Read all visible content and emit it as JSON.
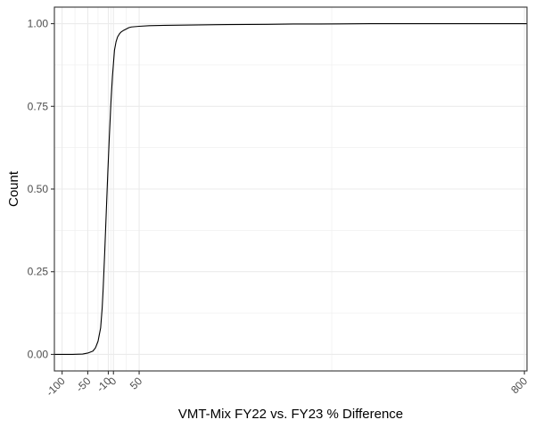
{
  "chart_data": {
    "type": "line",
    "title": "",
    "xlabel": "VMT-Mix FY22 vs. FY23 % Difference",
    "ylabel": "Count",
    "xlim": [
      -115,
      805
    ],
    "ylim": [
      -0.05,
      1.05
    ],
    "x_scale": "linear",
    "grid": true,
    "legend": "none",
    "x_ticks": [
      {
        "value": -100,
        "label": "-100"
      },
      {
        "value": -50,
        "label": "-50"
      },
      {
        "value": -10,
        "label": "-10"
      },
      {
        "value": 0,
        "label": "0"
      },
      {
        "value": 50,
        "label": "50"
      },
      {
        "value": 800,
        "label": "800"
      }
    ],
    "y_ticks": [
      {
        "value": 0,
        "label": "0.00"
      },
      {
        "value": 0.25,
        "label": "0.25"
      },
      {
        "value": 0.5,
        "label": "0.50"
      },
      {
        "value": 0.75,
        "label": "0.75"
      },
      {
        "value": 1,
        "label": "1.00"
      }
    ],
    "series": [
      {
        "color": "#000000",
        "x": [
          -115,
          -80,
          -60,
          -50,
          -40,
          -35,
          -30,
          -25,
          -22,
          -20,
          -17,
          -14,
          -11,
          -8,
          -5,
          -2,
          0,
          2,
          5,
          8,
          12,
          15,
          20,
          25,
          30,
          35,
          50,
          70,
          100,
          150,
          200,
          300,
          350,
          400,
          500,
          600,
          700,
          805
        ],
        "y": [
          0,
          0,
          0.001,
          0.004,
          0.01,
          0.02,
          0.04,
          0.08,
          0.14,
          0.2,
          0.31,
          0.43,
          0.55,
          0.66,
          0.76,
          0.84,
          0.88,
          0.92,
          0.945,
          0.96,
          0.97,
          0.975,
          0.98,
          0.984,
          0.988,
          0.99,
          0.992,
          0.994,
          0.995,
          0.996,
          0.997,
          0.998,
          0.999,
          0.999,
          1,
          1,
          1,
          1
        ]
      }
    ]
  }
}
